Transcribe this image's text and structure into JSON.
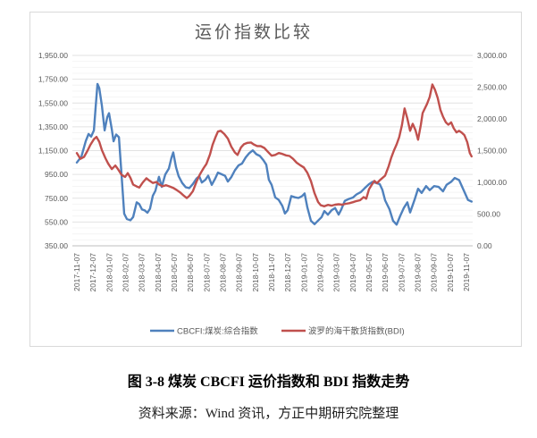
{
  "chart": {
    "title": "运价指数比较"
  },
  "caption": {
    "figure_title": "图 3-8 煤炭 CBCFI 运价指数和 BDI 指数走势",
    "source": "资料来源：Wind 资讯，方正中期研究院整理"
  },
  "chart_data": {
    "type": "line",
    "title": "运价指数比较",
    "x_unit": "months since 2017-11-07",
    "grid": {
      "major": true,
      "minor": true
    },
    "legend_position": "bottom",
    "x_axis": {
      "labels": [
        "2017-11-07",
        "2017-12-07",
        "2018-01-07",
        "2018-02-07",
        "2018-03-07",
        "2018-04-07",
        "2018-05-07",
        "2018-06-07",
        "2018-07-07",
        "2018-08-07",
        "2018-09-07",
        "2018-10-07",
        "2018-11-07",
        "2018-12-07",
        "2019-01-07",
        "2019-02-07",
        "2019-03-07",
        "2019-04-07",
        "2019-05-07",
        "2019-06-07",
        "2019-07-07",
        "2019-08-07",
        "2019-09-07",
        "2019-10-07",
        "2019-11-07"
      ]
    },
    "y_axis_left": {
      "min": 350,
      "max": 1950,
      "step": 200,
      "ticks": [
        {
          "label": "1,950.00",
          "value": 1950
        },
        {
          "label": "1,750.00",
          "value": 1750
        },
        {
          "label": "1,550.00",
          "value": 1550
        },
        {
          "label": "1,350.00",
          "value": 1350
        },
        {
          "label": "1,150.00",
          "value": 1150
        },
        {
          "label": "950.00",
          "value": 950
        },
        {
          "label": "750.00",
          "value": 750
        },
        {
          "label": "550.00",
          "value": 550
        },
        {
          "label": "350.00",
          "value": 350
        }
      ]
    },
    "y_axis_right": {
      "min": 0,
      "max": 3000,
      "step": 500,
      "ticks": [
        {
          "label": "3,000.00",
          "value": 3000
        },
        {
          "label": "2,500.00",
          "value": 2500
        },
        {
          "label": "2,000.00",
          "value": 2000
        },
        {
          "label": "1,500.00",
          "value": 1500
        },
        {
          "label": "1,000.00",
          "value": 1000
        },
        {
          "label": "500.00",
          "value": 500
        },
        {
          "label": "0.00",
          "value": 0
        }
      ]
    },
    "series": [
      {
        "name": "CBCFI:煤炭:综合指数",
        "axis": "left",
        "color": "#4F81BD",
        "points": [
          [
            0,
            1050
          ],
          [
            0.28,
            1100
          ],
          [
            0.55,
            1230
          ],
          [
            0.72,
            1290
          ],
          [
            0.88,
            1268
          ],
          [
            1.05,
            1320
          ],
          [
            1.16,
            1520
          ],
          [
            1.27,
            1710
          ],
          [
            1.38,
            1675
          ],
          [
            1.54,
            1530
          ],
          [
            1.71,
            1320
          ],
          [
            1.87,
            1430
          ],
          [
            1.98,
            1465
          ],
          [
            2.15,
            1330
          ],
          [
            2.26,
            1228
          ],
          [
            2.42,
            1285
          ],
          [
            2.59,
            1263
          ],
          [
            2.75,
            950
          ],
          [
            2.92,
            620
          ],
          [
            3.08,
            575
          ],
          [
            3.3,
            565
          ],
          [
            3.47,
            592
          ],
          [
            3.69,
            716
          ],
          [
            3.85,
            700
          ],
          [
            4.02,
            655
          ],
          [
            4.18,
            648
          ],
          [
            4.35,
            628
          ],
          [
            4.51,
            662
          ],
          [
            4.68,
            770
          ],
          [
            4.84,
            812
          ],
          [
            5.06,
            930
          ],
          [
            5.23,
            845
          ],
          [
            5.45,
            950
          ],
          [
            5.67,
            1000
          ],
          [
            5.83,
            1090
          ],
          [
            5.94,
            1135
          ],
          [
            6.11,
            1010
          ],
          [
            6.27,
            935
          ],
          [
            6.49,
            878
          ],
          [
            6.71,
            842
          ],
          [
            6.93,
            835
          ],
          [
            7.15,
            870
          ],
          [
            7.37,
            915
          ],
          [
            7.54,
            935
          ],
          [
            7.7,
            882
          ],
          [
            7.92,
            905
          ],
          [
            8.09,
            940
          ],
          [
            8.31,
            862
          ],
          [
            8.53,
            918
          ],
          [
            8.69,
            965
          ],
          [
            8.91,
            952
          ],
          [
            9.13,
            938
          ],
          [
            9.3,
            890
          ],
          [
            9.52,
            928
          ],
          [
            9.74,
            985
          ],
          [
            9.96,
            1025
          ],
          [
            10.18,
            1042
          ],
          [
            10.4,
            1092
          ],
          [
            10.62,
            1128
          ],
          [
            10.84,
            1152
          ],
          [
            11.06,
            1120
          ],
          [
            11.28,
            1105
          ],
          [
            11.5,
            1068
          ],
          [
            11.67,
            1032
          ],
          [
            11.83,
            905
          ],
          [
            12,
            862
          ],
          [
            12.22,
            757
          ],
          [
            12.44,
            735
          ],
          [
            12.66,
            685
          ],
          [
            12.82,
            622
          ],
          [
            12.99,
            650
          ],
          [
            13.21,
            768
          ],
          [
            13.43,
            758
          ],
          [
            13.65,
            752
          ],
          [
            13.87,
            768
          ],
          [
            14.03,
            790
          ],
          [
            14.2,
            672
          ],
          [
            14.42,
            560
          ],
          [
            14.64,
            532
          ],
          [
            14.86,
            562
          ],
          [
            15.08,
            592
          ],
          [
            15.25,
            642
          ],
          [
            15.47,
            612
          ],
          [
            15.69,
            648
          ],
          [
            15.91,
            668
          ],
          [
            16.13,
            612
          ],
          [
            16.29,
            655
          ],
          [
            16.51,
            728
          ],
          [
            16.73,
            742
          ],
          [
            17.01,
            756
          ],
          [
            17.23,
            782
          ],
          [
            17.5,
            802
          ],
          [
            17.72,
            832
          ],
          [
            18,
            868
          ],
          [
            18.22,
            888
          ],
          [
            18.44,
            878
          ],
          [
            18.66,
            868
          ],
          [
            18.82,
            822
          ],
          [
            18.99,
            732
          ],
          [
            19.26,
            657
          ],
          [
            19.48,
            560
          ],
          [
            19.7,
            528
          ],
          [
            19.92,
            602
          ],
          [
            20.14,
            668
          ],
          [
            20.36,
            715
          ],
          [
            20.53,
            630
          ],
          [
            20.8,
            735
          ],
          [
            21.02,
            830
          ],
          [
            21.24,
            795
          ],
          [
            21.52,
            852
          ],
          [
            21.74,
            818
          ],
          [
            22.01,
            852
          ],
          [
            22.29,
            845
          ],
          [
            22.56,
            808
          ],
          [
            22.78,
            862
          ],
          [
            23.06,
            888
          ],
          [
            23.28,
            920
          ],
          [
            23.55,
            903
          ],
          [
            23.83,
            818
          ],
          [
            24.1,
            735
          ],
          [
            24.32,
            722
          ]
        ]
      },
      {
        "name": "波罗的海干散货指数(BDI)",
        "axis": "right",
        "color": "#C0504D",
        "points": [
          [
            0,
            1460
          ],
          [
            0.22,
            1370
          ],
          [
            0.44,
            1400
          ],
          [
            0.66,
            1500
          ],
          [
            0.83,
            1590
          ],
          [
            1.05,
            1680
          ],
          [
            1.21,
            1715
          ],
          [
            1.38,
            1640
          ],
          [
            1.54,
            1510
          ],
          [
            1.76,
            1380
          ],
          [
            1.93,
            1295
          ],
          [
            2.15,
            1210
          ],
          [
            2.37,
            1265
          ],
          [
            2.53,
            1210
          ],
          [
            2.75,
            1120
          ],
          [
            2.97,
            1085
          ],
          [
            3.14,
            1145
          ],
          [
            3.3,
            1070
          ],
          [
            3.47,
            965
          ],
          [
            3.69,
            935
          ],
          [
            3.85,
            918
          ],
          [
            4.07,
            1000
          ],
          [
            4.29,
            1065
          ],
          [
            4.46,
            1030
          ],
          [
            4.68,
            990
          ],
          [
            4.9,
            1005
          ],
          [
            5.06,
            968
          ],
          [
            5.28,
            938
          ],
          [
            5.5,
            955
          ],
          [
            5.72,
            935
          ],
          [
            5.94,
            912
          ],
          [
            6.16,
            878
          ],
          [
            6.38,
            838
          ],
          [
            6.6,
            788
          ],
          [
            6.77,
            752
          ],
          [
            6.93,
            788
          ],
          [
            7.15,
            862
          ],
          [
            7.37,
            1010
          ],
          [
            7.59,
            1130
          ],
          [
            7.81,
            1225
          ],
          [
            7.98,
            1290
          ],
          [
            8.2,
            1440
          ],
          [
            8.36,
            1590
          ],
          [
            8.53,
            1705
          ],
          [
            8.69,
            1800
          ],
          [
            8.86,
            1812
          ],
          [
            9.08,
            1762
          ],
          [
            9.3,
            1690
          ],
          [
            9.52,
            1562
          ],
          [
            9.74,
            1470
          ],
          [
            9.9,
            1432
          ],
          [
            10.12,
            1552
          ],
          [
            10.29,
            1600
          ],
          [
            10.51,
            1622
          ],
          [
            10.73,
            1628
          ],
          [
            10.89,
            1598
          ],
          [
            11.11,
            1572
          ],
          [
            11.33,
            1570
          ],
          [
            11.55,
            1542
          ],
          [
            11.77,
            1482
          ],
          [
            12,
            1420
          ],
          [
            12.22,
            1432
          ],
          [
            12.44,
            1462
          ],
          [
            12.66,
            1448
          ],
          [
            12.88,
            1425
          ],
          [
            13.1,
            1415
          ],
          [
            13.32,
            1370
          ],
          [
            13.54,
            1310
          ],
          [
            13.76,
            1270
          ],
          [
            13.98,
            1235
          ],
          [
            14.2,
            1150
          ],
          [
            14.42,
            1020
          ],
          [
            14.64,
            830
          ],
          [
            14.86,
            690
          ],
          [
            15.03,
            640
          ],
          [
            15.25,
            622
          ],
          [
            15.47,
            645
          ],
          [
            15.69,
            632
          ],
          [
            15.91,
            648
          ],
          [
            16.13,
            655
          ],
          [
            16.35,
            648
          ],
          [
            16.57,
            662
          ],
          [
            16.79,
            672
          ],
          [
            17.01,
            688
          ],
          [
            17.23,
            705
          ],
          [
            17.45,
            718
          ],
          [
            17.67,
            768
          ],
          [
            17.83,
            742
          ],
          [
            18,
            892
          ],
          [
            18.16,
            958
          ],
          [
            18.33,
            1022
          ],
          [
            18.49,
            988
          ],
          [
            18.66,
            1032
          ],
          [
            18.82,
            1068
          ],
          [
            18.99,
            1105
          ],
          [
            19.21,
            1255
          ],
          [
            19.37,
            1390
          ],
          [
            19.54,
            1505
          ],
          [
            19.7,
            1598
          ],
          [
            19.86,
            1712
          ],
          [
            20.03,
            1905
          ],
          [
            20.19,
            2165
          ],
          [
            20.36,
            2005
          ],
          [
            20.53,
            1812
          ],
          [
            20.69,
            1922
          ],
          [
            20.86,
            1822
          ],
          [
            21.02,
            1672
          ],
          [
            21.19,
            1905
          ],
          [
            21.3,
            2092
          ],
          [
            21.57,
            2235
          ],
          [
            21.74,
            2345
          ],
          [
            21.9,
            2542
          ],
          [
            22.07,
            2455
          ],
          [
            22.23,
            2332
          ],
          [
            22.4,
            2142
          ],
          [
            22.56,
            2035
          ],
          [
            22.73,
            1948
          ],
          [
            22.89,
            1908
          ],
          [
            23.06,
            1945
          ],
          [
            23.22,
            1852
          ],
          [
            23.39,
            1788
          ],
          [
            23.55,
            1812
          ],
          [
            23.72,
            1782
          ],
          [
            23.88,
            1742
          ],
          [
            24.05,
            1635
          ],
          [
            24.21,
            1462
          ],
          [
            24.32,
            1408
          ]
        ]
      }
    ]
  }
}
